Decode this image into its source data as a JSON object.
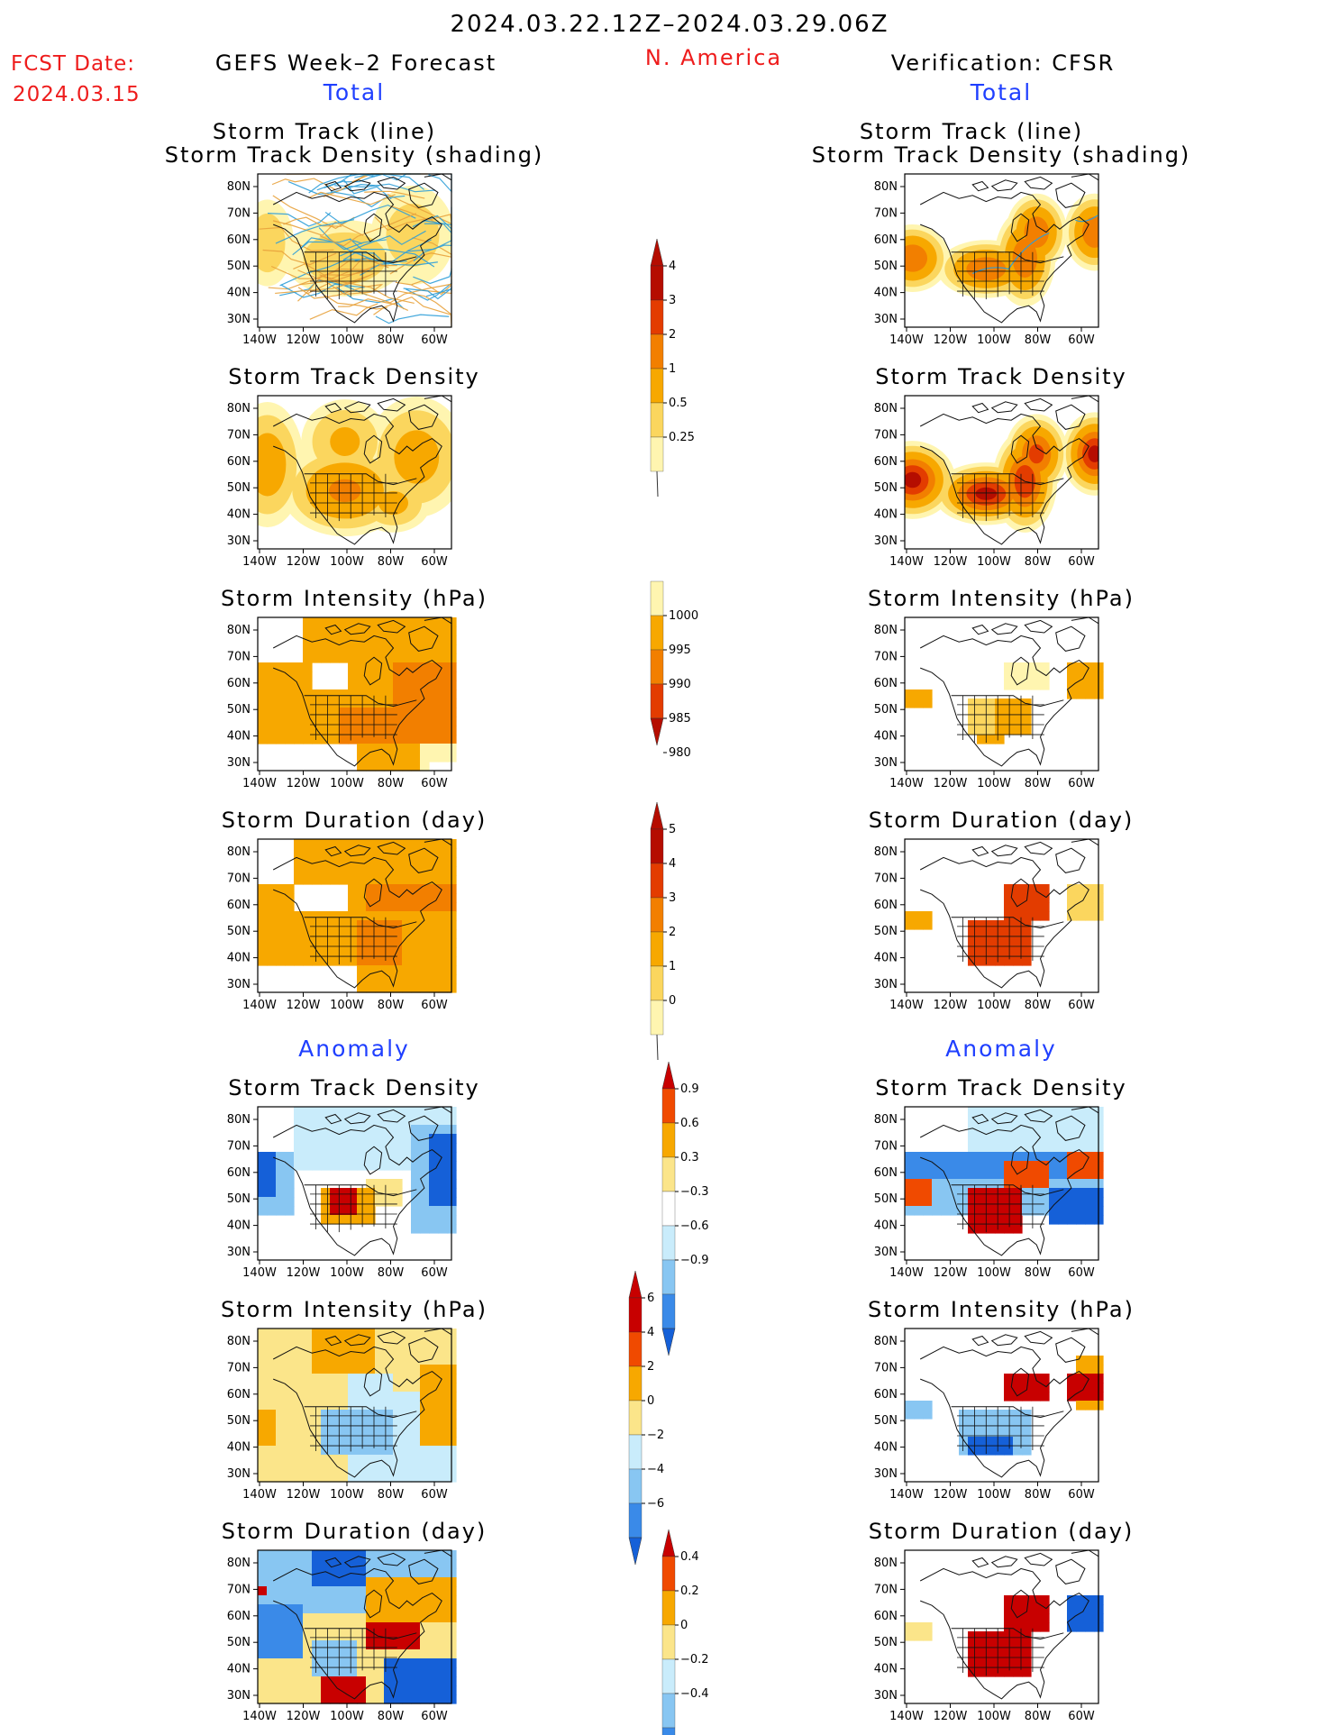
{
  "header": {
    "title": "2024.03.22.12Z–2024.03.29.06Z",
    "fcst_label": "FCST Date:",
    "fcst_date": "2024.03.15",
    "region": "N. America",
    "left_title": "GEFS Week–2 Forecast",
    "right_title": "Verification: CFSR"
  },
  "sections": {
    "total": "Total",
    "anomaly": "Anomaly"
  },
  "panels": {
    "track_line": "Storm Track (line)",
    "track_shading": "Storm Track Density (shading)",
    "density": "Storm Track Density",
    "intensity": "Storm Intensity (hPa)",
    "duration": "Storm Duration (day)"
  },
  "axes": {
    "lat_labels": [
      "80N",
      "70N",
      "60N",
      "50N",
      "40N",
      "30N"
    ],
    "lon_labels": [
      "140W",
      "120W",
      "100W",
      "80W",
      "60W"
    ]
  },
  "colorbars": {
    "density_total": [
      "0.25",
      "0.5",
      "1",
      "2",
      "3",
      "4"
    ],
    "intensity_total": [
      "1000",
      "995",
      "990",
      "985",
      "980"
    ],
    "duration_total": [
      "0",
      "1",
      "2",
      "3",
      "4",
      "5"
    ],
    "density_anomaly": [
      "0.9",
      "0.6",
      "0.3",
      "−0.3",
      "−0.6",
      "−0.9"
    ],
    "intensity_anomaly": [
      "6",
      "4",
      "2",
      "0",
      "−2",
      "−4",
      "−6"
    ],
    "duration_anomaly": [
      "0.4",
      "0.2",
      "0",
      "−0.2",
      "−0.4"
    ]
  },
  "colors": {
    "title_red": "#ee1c1c",
    "section_blue": "#1f3fff",
    "warm_scale": [
      "#fff5b0",
      "#fbd65e",
      "#f7a800",
      "#f27f00",
      "#e33c00",
      "#b50d00"
    ],
    "anomaly_scale": [
      "#1560d8",
      "#3a8ae8",
      "#88c6f2",
      "#c9ecfb",
      "#ffffff",
      "#fbe58a",
      "#f7a800",
      "#f04a00",
      "#c80000"
    ]
  }
}
